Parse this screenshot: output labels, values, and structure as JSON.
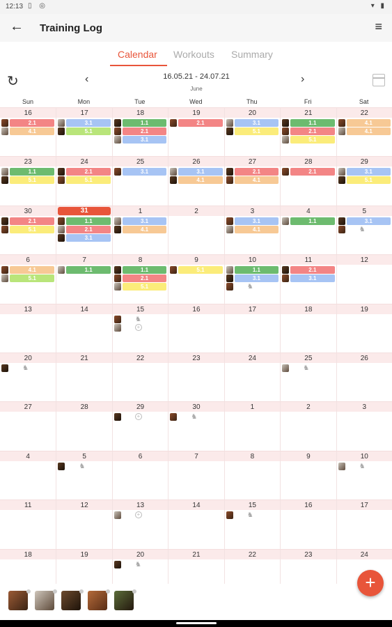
{
  "status": {
    "time": "12:13"
  },
  "app": {
    "title": "Training Log"
  },
  "tabs": [
    {
      "label": "Calendar",
      "active": true
    },
    {
      "label": "Workouts",
      "active": false
    },
    {
      "label": "Summary",
      "active": false
    }
  ],
  "range": {
    "text": "16.05.21 - 24.07.21",
    "month": "June"
  },
  "weekdays": [
    "Sun",
    "Mon",
    "Tue",
    "Wed",
    "Thu",
    "Fri",
    "Sat"
  ],
  "colors": {
    "accent": "#e8553a",
    "green": "#6dbb6f",
    "red": "#f38585",
    "blue": "#a7c4f4",
    "orange": "#f7c995",
    "yellow": "#fbec7a",
    "lime": "#b9e57a"
  },
  "weeks": [
    {
      "days": [
        {
          "num": "16",
          "entries": [
            {
              "color": "red",
              "label": "2.1"
            },
            {
              "color": "orange",
              "label": "4.1"
            }
          ]
        },
        {
          "num": "17",
          "entries": [
            {
              "color": "blue",
              "label": "3.1"
            },
            {
              "color": "lime",
              "label": "5.1"
            }
          ]
        },
        {
          "num": "18",
          "entries": [
            {
              "color": "green",
              "label": "1.1"
            },
            {
              "color": "red",
              "label": "2.1"
            },
            {
              "color": "blue",
              "label": "3.1"
            }
          ]
        },
        {
          "num": "19",
          "entries": [
            {
              "color": "red",
              "label": "2.1"
            }
          ]
        },
        {
          "num": "20",
          "entries": [
            {
              "color": "blue",
              "label": "3.1"
            },
            {
              "color": "yellow",
              "label": "5.1"
            }
          ]
        },
        {
          "num": "21",
          "entries": [
            {
              "color": "green",
              "label": "1.1"
            },
            {
              "color": "red",
              "label": "2.1"
            },
            {
              "color": "yellow",
              "label": "5.1"
            }
          ]
        },
        {
          "num": "22",
          "entries": [
            {
              "color": "orange",
              "label": "4.1"
            },
            {
              "color": "orange",
              "label": "4.1"
            }
          ]
        }
      ]
    },
    {
      "days": [
        {
          "num": "23",
          "entries": [
            {
              "color": "green",
              "label": "1.1"
            },
            {
              "color": "yellow",
              "label": "5.1"
            }
          ]
        },
        {
          "num": "24",
          "entries": [
            {
              "color": "red",
              "label": "2.1"
            },
            {
              "color": "yellow",
              "label": "5.1"
            }
          ]
        },
        {
          "num": "25",
          "entries": [
            {
              "color": "blue",
              "label": "3.1"
            }
          ]
        },
        {
          "num": "26",
          "entries": [
            {
              "color": "blue",
              "label": "3.1"
            },
            {
              "color": "orange",
              "label": "4.1"
            }
          ]
        },
        {
          "num": "27",
          "entries": [
            {
              "color": "red",
              "label": "2.1"
            },
            {
              "color": "orange",
              "label": "4.1"
            }
          ]
        },
        {
          "num": "28",
          "entries": [
            {
              "color": "red",
              "label": "2.1"
            }
          ]
        },
        {
          "num": "29",
          "entries": [
            {
              "color": "blue",
              "label": "3.1"
            },
            {
              "color": "yellow",
              "label": "5.1"
            }
          ]
        }
      ]
    },
    {
      "days": [
        {
          "num": "30",
          "entries": [
            {
              "color": "red",
              "label": "2.1"
            },
            {
              "color": "yellow",
              "label": "5.1"
            }
          ]
        },
        {
          "num": "31",
          "today": true,
          "entries": [
            {
              "color": "green",
              "label": "1.1"
            },
            {
              "color": "red",
              "label": "2.1"
            },
            {
              "color": "blue",
              "label": "3.1"
            }
          ]
        },
        {
          "num": "1",
          "entries": [
            {
              "color": "blue",
              "label": "3.1"
            },
            {
              "color": "orange",
              "label": "4.1"
            }
          ]
        },
        {
          "num": "2",
          "entries": []
        },
        {
          "num": "3",
          "entries": [
            {
              "color": "blue",
              "label": "3.1"
            },
            {
              "color": "orange",
              "label": "4.1"
            }
          ]
        },
        {
          "num": "4",
          "entries": [
            {
              "color": "green",
              "label": "1.1"
            }
          ]
        },
        {
          "num": "5",
          "entries": [
            {
              "color": "blue",
              "label": "3.1"
            },
            {
              "marker": "horse"
            }
          ]
        }
      ]
    },
    {
      "days": [
        {
          "num": "6",
          "entries": [
            {
              "color": "orange",
              "label": "4.1"
            },
            {
              "color": "lime",
              "label": "5.1"
            }
          ]
        },
        {
          "num": "7",
          "entries": [
            {
              "color": "green",
              "label": "1.1"
            }
          ]
        },
        {
          "num": "8",
          "entries": [
            {
              "color": "green",
              "label": "1.1"
            },
            {
              "color": "red",
              "label": "2.1"
            },
            {
              "color": "yellow",
              "label": "5.1"
            }
          ]
        },
        {
          "num": "9",
          "entries": [
            {
              "color": "yellow",
              "label": "5.1"
            }
          ]
        },
        {
          "num": "10",
          "entries": [
            {
              "color": "green",
              "label": "1.1"
            },
            {
              "color": "blue",
              "label": "3.1"
            },
            {
              "marker": "horse"
            }
          ]
        },
        {
          "num": "11",
          "entries": [
            {
              "color": "red",
              "label": "2.1"
            },
            {
              "color": "blue",
              "label": "3.1"
            }
          ]
        },
        {
          "num": "12",
          "entries": []
        }
      ]
    },
    {
      "days": [
        {
          "num": "13",
          "entries": []
        },
        {
          "num": "14",
          "entries": []
        },
        {
          "num": "15",
          "entries": [
            {
              "marker": "horse"
            },
            {
              "marker": "add"
            }
          ]
        },
        {
          "num": "16",
          "entries": []
        },
        {
          "num": "17",
          "entries": []
        },
        {
          "num": "18",
          "entries": []
        },
        {
          "num": "19",
          "entries": []
        }
      ]
    },
    {
      "days": [
        {
          "num": "20",
          "entries": [
            {
              "marker": "horse"
            }
          ]
        },
        {
          "num": "21",
          "entries": []
        },
        {
          "num": "22",
          "entries": []
        },
        {
          "num": "23",
          "entries": []
        },
        {
          "num": "24",
          "entries": []
        },
        {
          "num": "25",
          "entries": [
            {
              "marker": "horse"
            }
          ]
        },
        {
          "num": "26",
          "entries": []
        }
      ]
    },
    {
      "days": [
        {
          "num": "27",
          "entries": []
        },
        {
          "num": "28",
          "entries": []
        },
        {
          "num": "29",
          "entries": [
            {
              "marker": "add"
            }
          ]
        },
        {
          "num": "30",
          "entries": [
            {
              "marker": "horse"
            }
          ]
        },
        {
          "num": "1",
          "entries": []
        },
        {
          "num": "2",
          "entries": []
        },
        {
          "num": "3",
          "entries": []
        }
      ]
    },
    {
      "days": [
        {
          "num": "4",
          "entries": []
        },
        {
          "num": "5",
          "entries": [
            {
              "marker": "horse"
            }
          ]
        },
        {
          "num": "6",
          "entries": []
        },
        {
          "num": "7",
          "entries": []
        },
        {
          "num": "8",
          "entries": []
        },
        {
          "num": "9",
          "entries": []
        },
        {
          "num": "10",
          "entries": [
            {
              "marker": "horse"
            }
          ]
        }
      ]
    },
    {
      "days": [
        {
          "num": "11",
          "entries": []
        },
        {
          "num": "12",
          "entries": []
        },
        {
          "num": "13",
          "entries": [
            {
              "marker": "add"
            }
          ]
        },
        {
          "num": "14",
          "entries": []
        },
        {
          "num": "15",
          "entries": [
            {
              "marker": "horse"
            }
          ]
        },
        {
          "num": "16",
          "entries": []
        },
        {
          "num": "17",
          "entries": []
        }
      ]
    },
    {
      "days": [
        {
          "num": "18",
          "entries": []
        },
        {
          "num": "19",
          "entries": []
        },
        {
          "num": "20",
          "entries": [
            {
              "marker": "horse"
            }
          ]
        },
        {
          "num": "21",
          "entries": []
        },
        {
          "num": "22",
          "entries": []
        },
        {
          "num": "23",
          "entries": []
        },
        {
          "num": "24",
          "entries": []
        }
      ]
    }
  ],
  "horses": [
    {
      "icon": "horse-avatar-icon"
    },
    {
      "icon": "horse-avatar-icon"
    },
    {
      "icon": "horse-avatar-icon"
    },
    {
      "icon": "horse-avatar-icon"
    },
    {
      "icon": "horse-avatar-icon"
    }
  ],
  "fab": {
    "label": "+"
  }
}
